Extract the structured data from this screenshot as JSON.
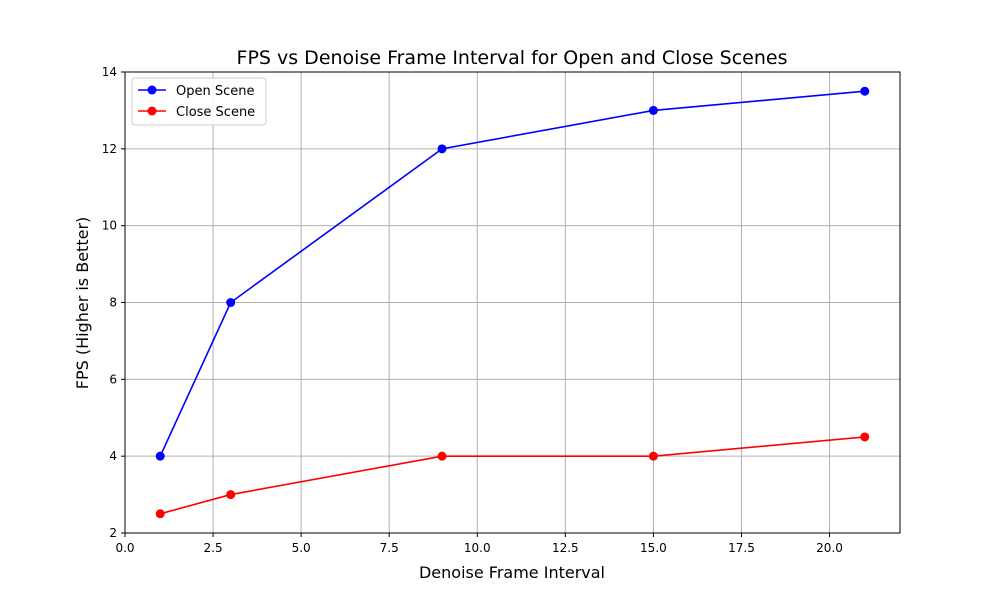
{
  "chart_data": {
    "type": "line",
    "title": "FPS vs Denoise Frame Interval for Open and Close Scenes",
    "xlabel": "Denoise Frame Interval",
    "ylabel": "FPS (Higher is Better)",
    "xlim": [
      0,
      22
    ],
    "ylim": [
      2,
      14
    ],
    "x_ticks": [
      0,
      2.5,
      5,
      7.5,
      10,
      12.5,
      15,
      17.5,
      20
    ],
    "x_tick_labels": [
      "0.0",
      "2.5",
      "5.0",
      "7.5",
      "10.0",
      "12.5",
      "15.0",
      "17.5",
      "20.0"
    ],
    "y_ticks": [
      2,
      4,
      6,
      8,
      10,
      12,
      14
    ],
    "y_tick_labels": [
      "2",
      "4",
      "6",
      "8",
      "10",
      "12",
      "14"
    ],
    "grid": true,
    "legend_position": "top-left",
    "x": [
      1,
      3,
      9,
      15,
      21
    ],
    "series": [
      {
        "name": "Open Scene",
        "color": "#0000ff",
        "values": [
          4,
          8,
          12,
          13,
          13.5
        ]
      },
      {
        "name": "Close Scene",
        "color": "#ff0000",
        "values": [
          2.5,
          3,
          4,
          4,
          4.5
        ]
      }
    ]
  }
}
